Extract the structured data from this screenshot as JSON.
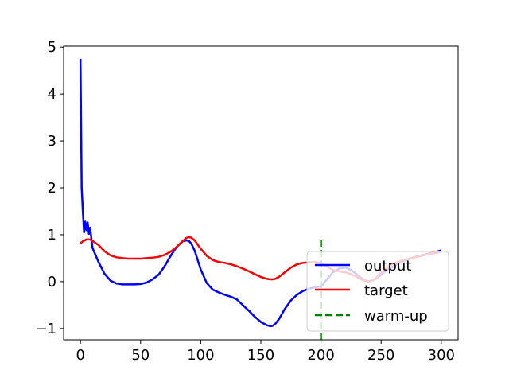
{
  "chart_data": {
    "type": "line",
    "title": "",
    "xlabel": "",
    "ylabel": "",
    "xlim": [
      -14,
      314
    ],
    "ylim": [
      -1.24,
      5.02
    ],
    "xticks": [
      0,
      50,
      100,
      150,
      200,
      250,
      300
    ],
    "xtick_labels": [
      "0",
      "50",
      "100",
      "150",
      "200",
      "250",
      "300"
    ],
    "yticks": [
      -1,
      0,
      1,
      2,
      3,
      4,
      5
    ],
    "ytick_labels": [
      "−1",
      "0",
      "1",
      "2",
      "3",
      "4",
      "5"
    ],
    "grid": false,
    "legend_position": "lower-right",
    "series": [
      {
        "name": "output",
        "color": "#0000ff",
        "style": "solid",
        "x": [
          0,
          1,
          2,
          3,
          4,
          5,
          6,
          7,
          8,
          10,
          15,
          20,
          25,
          30,
          35,
          40,
          45,
          50,
          55,
          60,
          65,
          70,
          75,
          80,
          85,
          88,
          90,
          92,
          95,
          100,
          105,
          110,
          115,
          120,
          125,
          130,
          135,
          140,
          145,
          150,
          155,
          158,
          160,
          162,
          165,
          170,
          175,
          180,
          185,
          190,
          195,
          200,
          205,
          210,
          215,
          220,
          225,
          230,
          235,
          240,
          245,
          250,
          255,
          260,
          265,
          270,
          275,
          280,
          285,
          290,
          295,
          300
        ],
        "y": [
          4.75,
          2.0,
          1.5,
          1.05,
          1.28,
          1.1,
          1.26,
          1.02,
          1.15,
          0.72,
          0.42,
          0.17,
          0.02,
          -0.04,
          -0.06,
          -0.06,
          -0.06,
          -0.05,
          -0.02,
          0.05,
          0.15,
          0.33,
          0.55,
          0.74,
          0.86,
          0.88,
          0.87,
          0.82,
          0.66,
          0.26,
          -0.03,
          -0.17,
          -0.23,
          -0.28,
          -0.32,
          -0.38,
          -0.5,
          -0.62,
          -0.75,
          -0.86,
          -0.93,
          -0.95,
          -0.94,
          -0.9,
          -0.8,
          -0.58,
          -0.4,
          -0.28,
          -0.2,
          -0.15,
          -0.12,
          -0.1,
          0.05,
          0.2,
          0.28,
          0.3,
          0.25,
          0.15,
          0.05,
          0.0,
          0.05,
          0.15,
          0.25,
          0.32,
          0.4,
          0.45,
          0.5,
          0.54,
          0.57,
          0.6,
          0.63,
          0.67
        ]
      },
      {
        "name": "target",
        "color": "#ff0000",
        "style": "solid",
        "x": [
          0,
          2,
          5,
          8,
          10,
          15,
          20,
          25,
          30,
          35,
          40,
          45,
          50,
          55,
          60,
          65,
          70,
          75,
          80,
          85,
          88,
          90,
          92,
          95,
          100,
          105,
          110,
          115,
          120,
          125,
          130,
          135,
          140,
          145,
          150,
          155,
          158,
          160,
          162,
          165,
          170,
          175,
          180,
          185,
          190,
          195,
          200,
          205,
          210,
          215,
          220,
          225,
          230,
          235,
          240,
          245,
          250,
          255,
          260,
          265,
          270,
          275,
          280,
          285,
          290,
          295,
          300
        ],
        "y": [
          0.82,
          0.86,
          0.9,
          0.9,
          0.87,
          0.78,
          0.65,
          0.56,
          0.52,
          0.5,
          0.49,
          0.49,
          0.49,
          0.5,
          0.51,
          0.53,
          0.57,
          0.64,
          0.74,
          0.86,
          0.93,
          0.95,
          0.94,
          0.88,
          0.7,
          0.55,
          0.46,
          0.42,
          0.4,
          0.37,
          0.33,
          0.28,
          0.22,
          0.16,
          0.1,
          0.06,
          0.05,
          0.05,
          0.06,
          0.1,
          0.2,
          0.3,
          0.37,
          0.4,
          0.41,
          0.42,
          0.4,
          0.32,
          0.25,
          0.22,
          0.2,
          0.16,
          0.1,
          0.03,
          0.0,
          0.05,
          0.2,
          0.3,
          0.38,
          0.43,
          0.47,
          0.5,
          0.53,
          0.56,
          0.59,
          0.61,
          0.64
        ]
      },
      {
        "name": "warm-up",
        "color": "#008000",
        "style": "dashed",
        "x": [
          200,
          200
        ],
        "y": [
          -1.24,
          0.95
        ]
      }
    ]
  }
}
